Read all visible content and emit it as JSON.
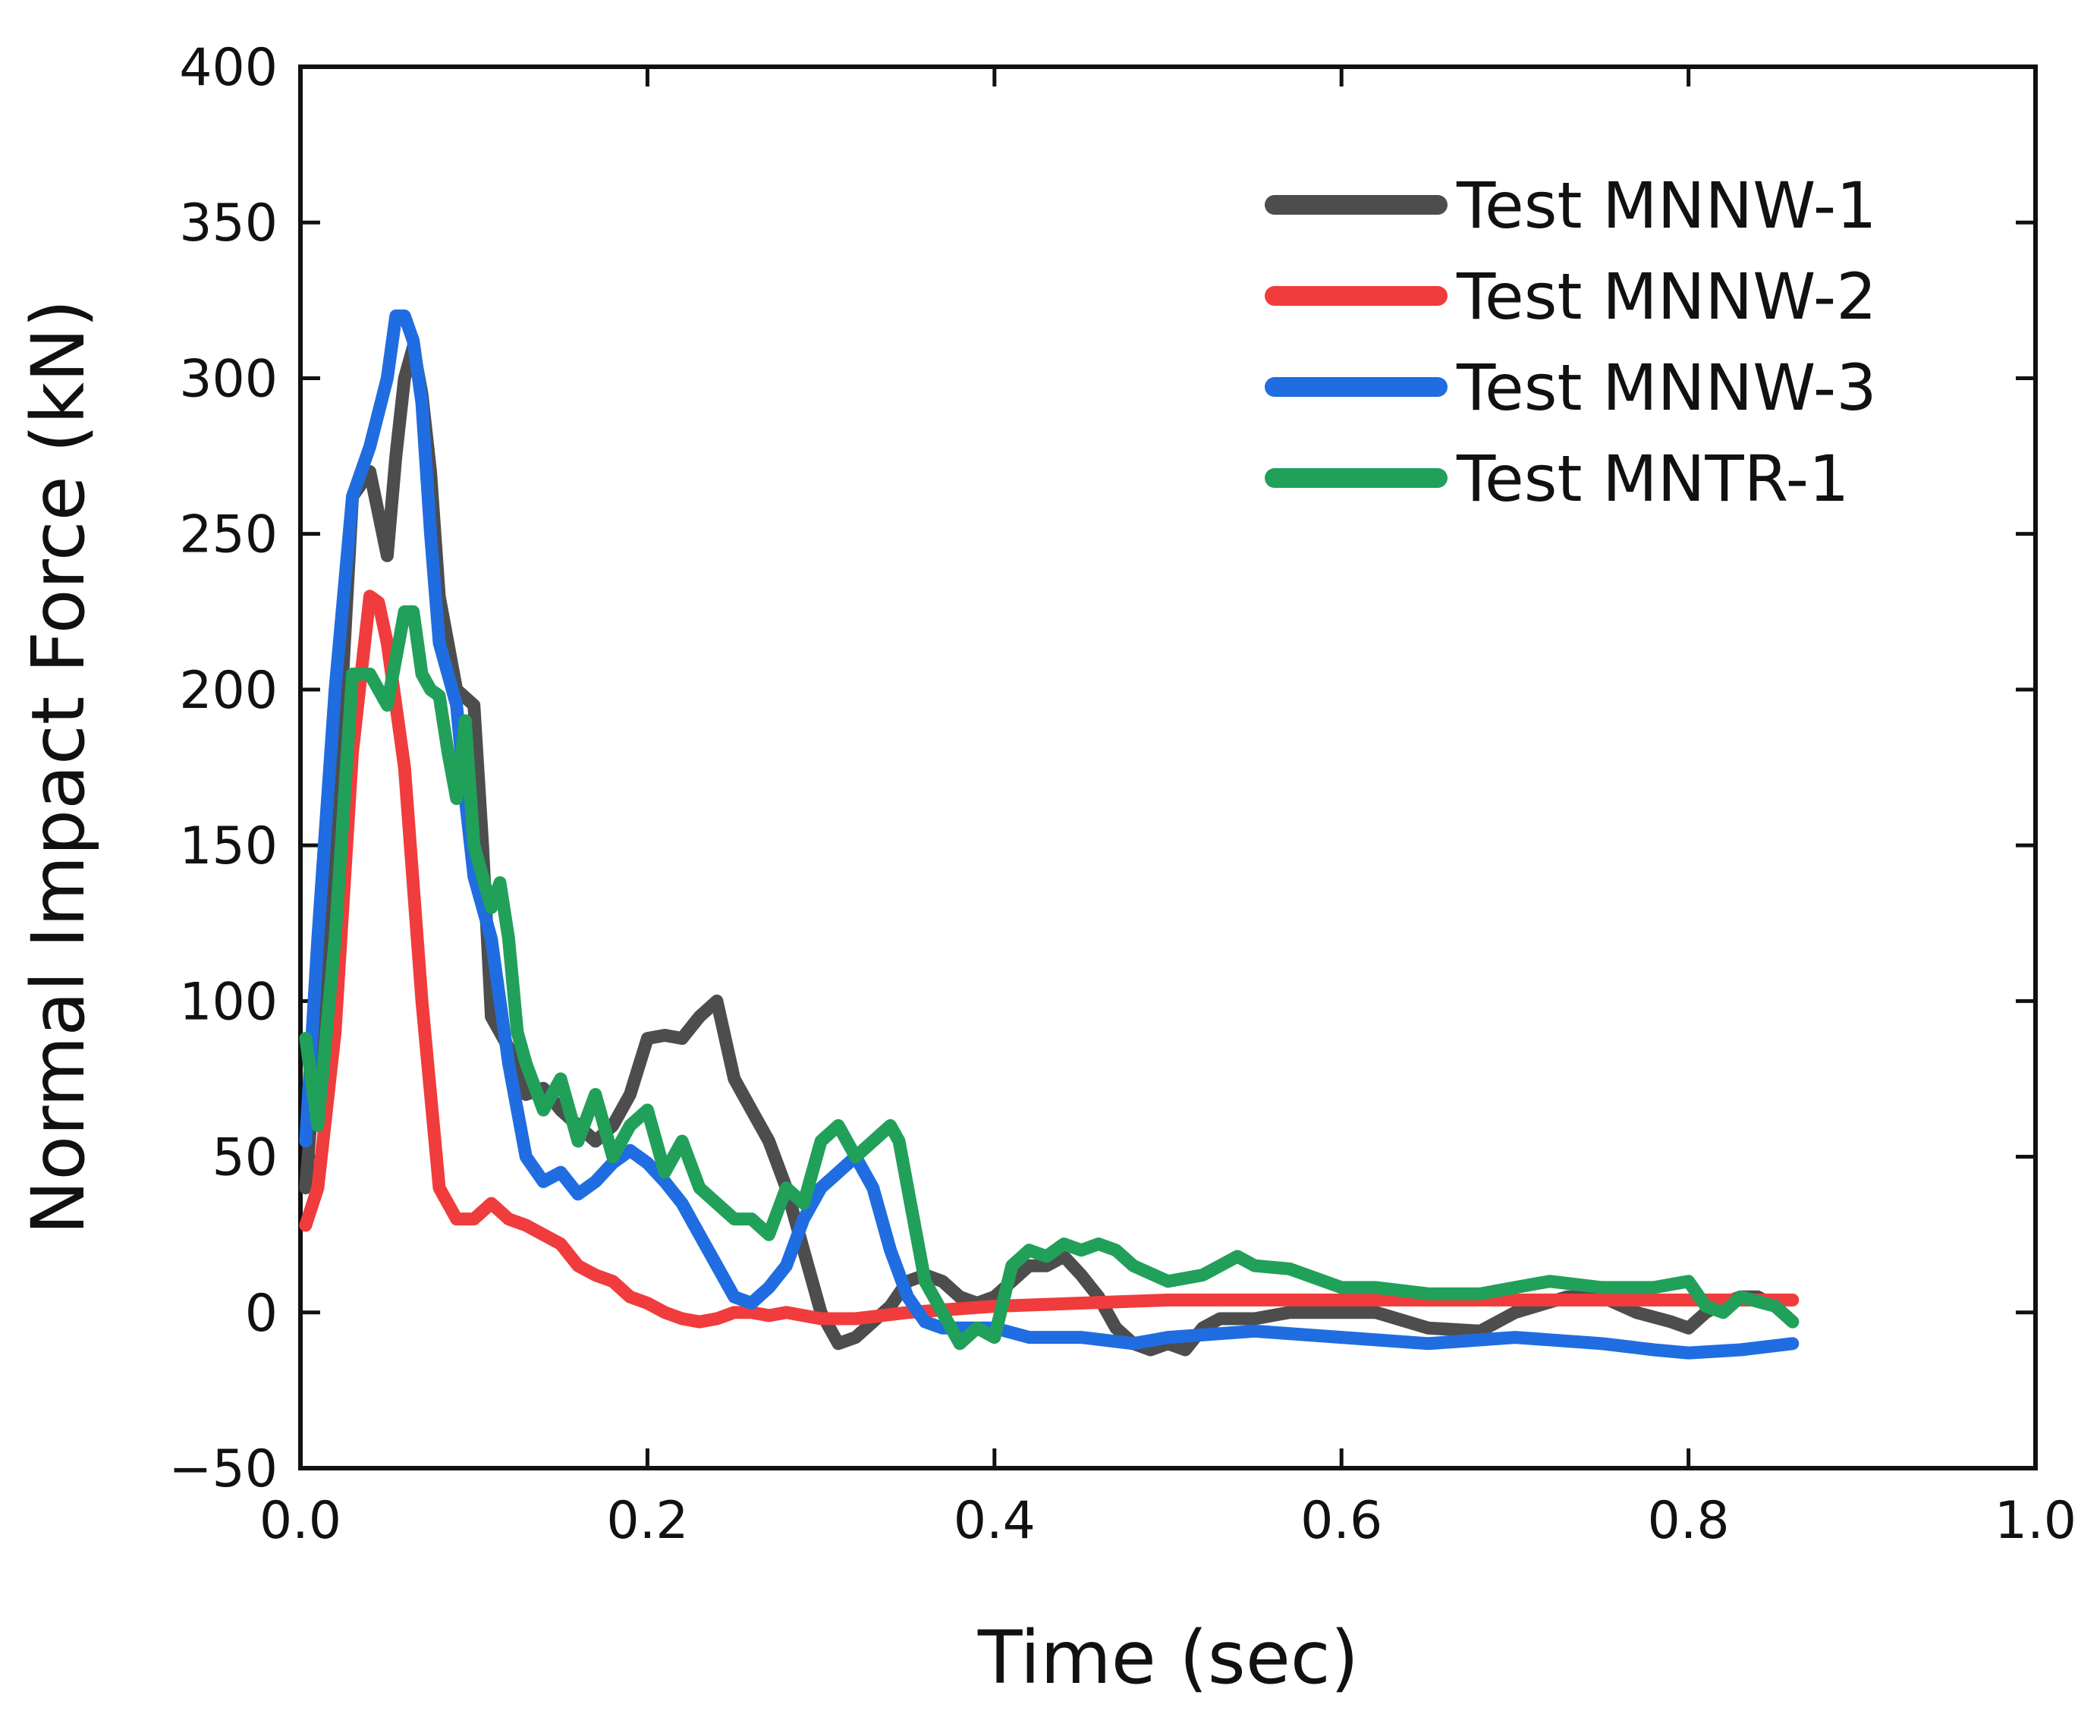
{
  "chart_data": {
    "type": "line",
    "title": "",
    "xlabel": "Time (sec)",
    "ylabel": "Normal Impact Force (kN)",
    "xlim": [
      0.0,
      1.0
    ],
    "ylim": [
      -50,
      400
    ],
    "xticks": [
      0.0,
      0.2,
      0.4,
      0.6,
      0.8,
      1.0
    ],
    "xtick_labels": [
      "0.0",
      "0.2",
      "0.4",
      "0.6",
      "0.8",
      "1.0"
    ],
    "yticks": [
      -50,
      0,
      50,
      100,
      150,
      200,
      250,
      300,
      350,
      400
    ],
    "ytick_labels": [
      "−50",
      "0",
      "50",
      "100",
      "150",
      "200",
      "250",
      "300",
      "350",
      "400"
    ],
    "grid": false,
    "legend_position": "top-right",
    "series": [
      {
        "name": "Test MNNW-1",
        "color": "#4d4d4d",
        "x": [
          0.003,
          0.01,
          0.02,
          0.03,
          0.04,
          0.05,
          0.055,
          0.06,
          0.065,
          0.07,
          0.075,
          0.08,
          0.09,
          0.1,
          0.105,
          0.11,
          0.12,
          0.13,
          0.14,
          0.15,
          0.16,
          0.17,
          0.18,
          0.19,
          0.2,
          0.21,
          0.22,
          0.23,
          0.24,
          0.25,
          0.26,
          0.27,
          0.28,
          0.29,
          0.3,
          0.31,
          0.32,
          0.33,
          0.34,
          0.35,
          0.36,
          0.37,
          0.38,
          0.39,
          0.4,
          0.41,
          0.42,
          0.43,
          0.44,
          0.45,
          0.46,
          0.47,
          0.48,
          0.49,
          0.5,
          0.51,
          0.52,
          0.53,
          0.55,
          0.57,
          0.6,
          0.62,
          0.65,
          0.68,
          0.7,
          0.73,
          0.75,
          0.77,
          0.79,
          0.8,
          0.81,
          0.82,
          0.83,
          0.84,
          0.85,
          0.86
        ],
        "y": [
          40,
          90,
          160,
          262,
          270,
          243,
          275,
          300,
          310,
          295,
          270,
          230,
          200,
          195,
          150,
          95,
          85,
          70,
          72,
          65,
          60,
          55,
          60,
          70,
          88,
          89,
          88,
          95,
          100,
          75,
          65,
          55,
          40,
          20,
          0,
          -10,
          -8,
          -3,
          2,
          10,
          12,
          10,
          5,
          3,
          5,
          10,
          15,
          15,
          18,
          12,
          5,
          -5,
          -10,
          -12,
          -10,
          -12,
          -5,
          -2,
          -2,
          0,
          0,
          0,
          -5,
          -6,
          0,
          5,
          5,
          0,
          -3,
          -5,
          0,
          3,
          5,
          5,
          2,
          -3
        ]
      },
      {
        "name": "Test MNNW-2",
        "color": "#f03c3c",
        "x": [
          0.003,
          0.01,
          0.02,
          0.03,
          0.04,
          0.045,
          0.05,
          0.06,
          0.07,
          0.08,
          0.09,
          0.1,
          0.11,
          0.12,
          0.13,
          0.14,
          0.15,
          0.16,
          0.17,
          0.18,
          0.19,
          0.2,
          0.21,
          0.22,
          0.23,
          0.24,
          0.25,
          0.26,
          0.27,
          0.28,
          0.3,
          0.32,
          0.35,
          0.4,
          0.5,
          0.6,
          0.7,
          0.8,
          0.86
        ],
        "y": [
          28,
          40,
          90,
          180,
          230,
          228,
          215,
          175,
          100,
          40,
          30,
          30,
          35,
          30,
          28,
          25,
          22,
          15,
          12,
          10,
          5,
          3,
          0,
          -2,
          -3,
          -2,
          0,
          0,
          -1,
          0,
          -2,
          -2,
          0,
          2,
          4,
          4,
          4,
          4,
          4
        ]
      },
      {
        "name": "Test MNNW-3",
        "color": "#1f6de0",
        "x": [
          0.003,
          0.01,
          0.02,
          0.03,
          0.04,
          0.05,
          0.055,
          0.06,
          0.065,
          0.07,
          0.075,
          0.08,
          0.085,
          0.09,
          0.095,
          0.1,
          0.11,
          0.12,
          0.13,
          0.14,
          0.15,
          0.16,
          0.17,
          0.18,
          0.19,
          0.2,
          0.21,
          0.22,
          0.23,
          0.24,
          0.25,
          0.26,
          0.27,
          0.28,
          0.29,
          0.3,
          0.31,
          0.32,
          0.33,
          0.34,
          0.35,
          0.36,
          0.37,
          0.38,
          0.4,
          0.42,
          0.45,
          0.48,
          0.5,
          0.55,
          0.6,
          0.65,
          0.7,
          0.75,
          0.78,
          0.8,
          0.83,
          0.86
        ],
        "y": [
          55,
          120,
          200,
          262,
          278,
          300,
          320,
          320,
          312,
          292,
          250,
          215,
          205,
          195,
          165,
          140,
          120,
          80,
          50,
          42,
          45,
          38,
          42,
          48,
          52,
          48,
          42,
          35,
          25,
          15,
          5,
          3,
          8,
          15,
          30,
          40,
          45,
          50,
          40,
          20,
          5,
          -3,
          -5,
          -5,
          -5,
          -8,
          -8,
          -10,
          -8,
          -6,
          -8,
          -10,
          -8,
          -10,
          -12,
          -13,
          -12,
          -10
        ]
      },
      {
        "name": "Test MNTR-1",
        "color": "#21a05a",
        "x": [
          0.003,
          0.01,
          0.02,
          0.03,
          0.04,
          0.045,
          0.05,
          0.055,
          0.06,
          0.065,
          0.07,
          0.075,
          0.08,
          0.085,
          0.09,
          0.095,
          0.1,
          0.105,
          0.11,
          0.115,
          0.12,
          0.125,
          0.13,
          0.14,
          0.15,
          0.16,
          0.17,
          0.18,
          0.19,
          0.2,
          0.21,
          0.22,
          0.23,
          0.24,
          0.25,
          0.26,
          0.27,
          0.28,
          0.29,
          0.3,
          0.31,
          0.32,
          0.33,
          0.34,
          0.345,
          0.35,
          0.36,
          0.37,
          0.38,
          0.39,
          0.4,
          0.41,
          0.42,
          0.43,
          0.44,
          0.45,
          0.46,
          0.47,
          0.48,
          0.5,
          0.52,
          0.54,
          0.55,
          0.57,
          0.6,
          0.62,
          0.65,
          0.68,
          0.7,
          0.72,
          0.75,
          0.78,
          0.8,
          0.81,
          0.82,
          0.83,
          0.85,
          0.86
        ],
        "y": [
          88,
          60,
          120,
          205,
          205,
          200,
          195,
          210,
          225,
          225,
          205,
          200,
          198,
          180,
          165,
          190,
          150,
          140,
          130,
          138,
          120,
          90,
          80,
          65,
          75,
          55,
          70,
          50,
          60,
          65,
          45,
          55,
          40,
          35,
          30,
          30,
          25,
          40,
          35,
          55,
          60,
          50,
          55,
          60,
          55,
          40,
          10,
          0,
          -10,
          -5,
          -8,
          15,
          20,
          18,
          22,
          20,
          22,
          20,
          15,
          10,
          12,
          18,
          15,
          14,
          8,
          8,
          6,
          6,
          8,
          10,
          8,
          8,
          10,
          2,
          0,
          5,
          2,
          -3
        ]
      }
    ]
  }
}
